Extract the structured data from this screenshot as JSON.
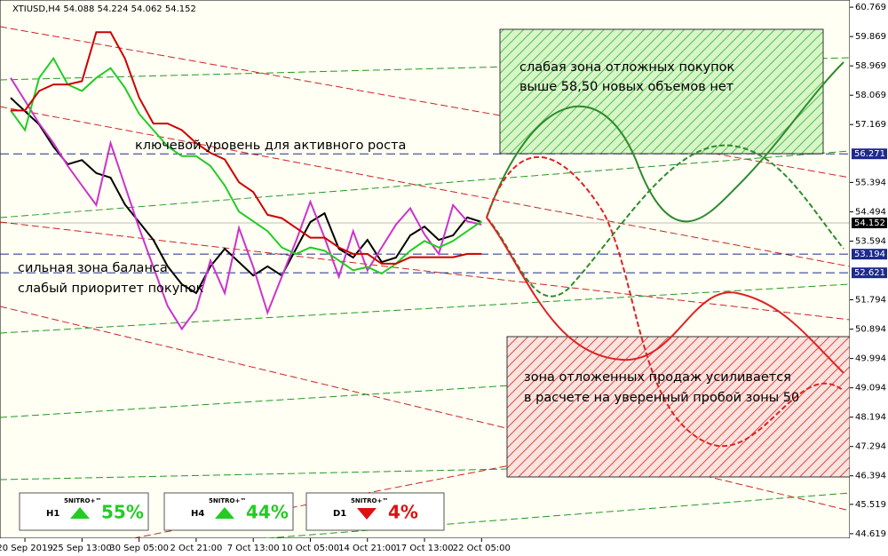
{
  "chart_data": {
    "type": "line",
    "title": "XTIUSD,H4  54.088 54.224 54.062 54.152",
    "categories": [
      null,
      "20 Sep 2019",
      null,
      null,
      null,
      "25 Sep 13:00",
      null,
      null,
      null,
      "30 Sep 05:00",
      null,
      null,
      null,
      "2 Oct 21:00",
      null,
      null,
      null,
      "7 Oct 13:00",
      null,
      null,
      null,
      "10 Oct 05:00",
      null,
      null,
      null,
      "14 Oct 21:00",
      null,
      null,
      null,
      "17 Oct 13:00",
      null,
      null,
      null,
      "22 Oct 05:00"
    ],
    "series": [
      {
        "color": "#000000",
        "values": [
          57.99,
          57.58,
          57.17,
          56.49,
          55.95,
          56.08,
          55.68,
          55.54,
          54.72,
          54.18,
          53.63,
          52.82,
          52.27,
          52.0,
          52.82,
          53.36,
          52.95,
          52.54,
          52.82,
          52.54,
          53.36,
          54.18,
          54.45,
          53.36,
          53.09,
          53.63,
          52.95,
          53.09,
          53.77,
          54.04,
          53.63,
          53.77,
          54.32,
          54.18
        ]
      },
      {
        "color": "#cc33cc",
        "values": [
          58.6,
          57.9,
          57.2,
          56.6,
          55.9,
          55.3,
          54.7,
          56.6,
          55.3,
          54.0,
          52.8,
          51.6,
          50.9,
          51.5,
          53.0,
          52.0,
          54.0,
          52.8,
          51.4,
          52.5,
          53.6,
          54.8,
          53.7,
          52.5,
          53.9,
          52.7,
          53.4,
          54.1,
          54.6,
          53.8,
          53.2,
          54.7,
          54.2,
          54.1
        ]
      },
      {
        "color": "#22cc22",
        "values": [
          57.6,
          57.0,
          58.6,
          59.2,
          58.4,
          58.2,
          58.6,
          58.9,
          58.3,
          57.5,
          57.0,
          56.5,
          56.2,
          56.2,
          55.9,
          55.3,
          54.5,
          54.2,
          53.9,
          53.4,
          53.2,
          53.4,
          53.3,
          53.0,
          52.7,
          52.8,
          52.6,
          52.9,
          53.3,
          53.6,
          53.4,
          53.6,
          53.9,
          54.2
        ]
      },
      {
        "color": "#cc0000",
        "values": [
          57.6,
          57.6,
          58.2,
          58.4,
          58.4,
          58.5,
          60.0,
          60.0,
          59.2,
          58.0,
          57.2,
          57.2,
          57.0,
          56.6,
          56.3,
          56.1,
          55.4,
          55.1,
          54.4,
          54.3,
          54.0,
          53.7,
          53.7,
          53.4,
          53.2,
          53.2,
          52.9,
          52.9,
          53.1,
          53.1,
          53.1,
          53.1,
          53.2,
          53.2
        ]
      }
    ],
    "ylim": [
      44.48,
      60.99
    ],
    "yticks": [
      60.769,
      59.869,
      58.969,
      58.069,
      57.169,
      55.394,
      54.494,
      53.594,
      51.794,
      50.894,
      49.994,
      49.094,
      48.194,
      47.294,
      46.394,
      45.519,
      44.619
    ],
    "levels": [
      {
        "value": 56.271,
        "color": "#1e2a8c"
      },
      {
        "value": 54.152,
        "color": "#000000"
      },
      {
        "value": 53.194,
        "color": "#1e2a8c"
      },
      {
        "value": 52.621,
        "color": "#1e2a8c"
      }
    ],
    "annotations": [
      "ключевой уровень для активного роста",
      "сильная зона баланса",
      "слабый приоритет покупок",
      "слабая зона отложных покупок",
      "выше 58,50 новых объемов нет",
      "зона отложенных продаж усиливается",
      "в расчете на уверенный пробой зоны 50"
    ],
    "signals": [
      {
        "brand": "5NITRO+™",
        "timeframe": "H1",
        "label": "55%"
      },
      {
        "brand": "5NITRO+™",
        "timeframe": "H4",
        "label": "44%"
      },
      {
        "brand": "5NITRO+™",
        "timeframe": "D1",
        "label": "4%"
      }
    ]
  }
}
